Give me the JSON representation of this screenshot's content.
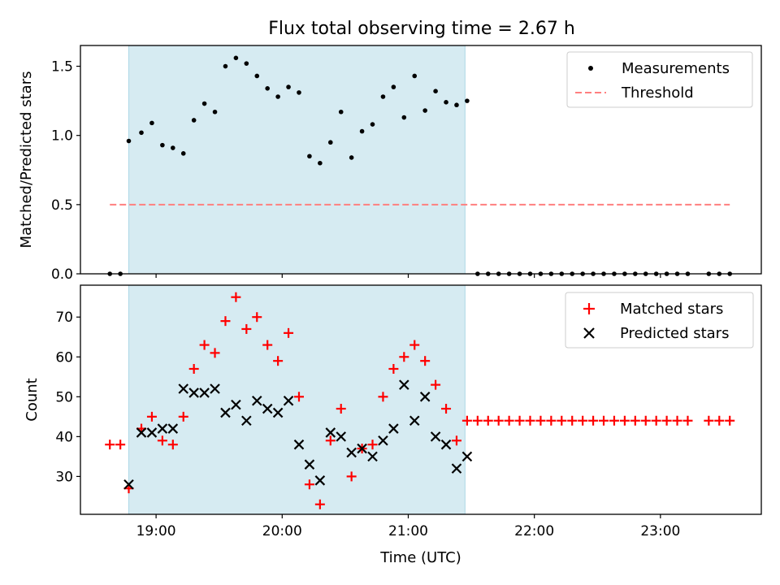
{
  "title": "Flux total observing time = 2.67 h",
  "colors": {
    "shade": "#add8e6",
    "measure": "#000000",
    "threshold": "#ff7f7f",
    "matched": "#ff0000",
    "predicted": "#000000"
  },
  "chart_data": [
    {
      "type": "scatter",
      "ylabel": "Matched/Predicted stars",
      "ylim": [
        0,
        1.65
      ],
      "yticks": [
        0.0,
        0.5,
        1.0,
        1.5
      ],
      "ytick_labels": [
        "0.0",
        "0.5",
        "1.0",
        "1.5"
      ],
      "shaded_span": [
        "18:47",
        "21:27"
      ],
      "threshold": 0.5,
      "threshold_range": [
        "18:38",
        "23:33"
      ],
      "legend": [
        "Measurements",
        "Threshold"
      ],
      "legend_position": "top-right",
      "measurements": {
        "x": [
          "18:38",
          "18:43",
          "18:47",
          "18:53",
          "18:58",
          "19:03",
          "19:08",
          "19:13",
          "19:18",
          "19:23",
          "19:28",
          "19:33",
          "19:38",
          "19:43",
          "19:48",
          "19:53",
          "19:58",
          "20:03",
          "20:08",
          "20:13",
          "20:18",
          "20:23",
          "20:28",
          "20:33",
          "20:38",
          "20:43",
          "20:48",
          "20:53",
          "20:58",
          "21:03",
          "21:08",
          "21:13",
          "21:18",
          "21:23",
          "21:28",
          "21:33",
          "21:38",
          "21:43",
          "21:48",
          "21:53",
          "21:58",
          "22:03",
          "22:08",
          "22:13",
          "22:18",
          "22:23",
          "22:28",
          "22:33",
          "22:38",
          "22:43",
          "22:48",
          "22:53",
          "22:58",
          "23:03",
          "23:08",
          "23:13",
          "23:23",
          "23:28",
          "23:33"
        ],
        "y": [
          0,
          0,
          0.96,
          1.02,
          1.09,
          0.93,
          0.91,
          0.87,
          1.11,
          1.23,
          1.17,
          1.5,
          1.56,
          1.52,
          1.43,
          1.34,
          1.28,
          1.35,
          1.31,
          0.85,
          0.8,
          0.95,
          1.17,
          0.84,
          1.03,
          1.08,
          1.28,
          1.35,
          1.13,
          1.43,
          1.18,
          1.32,
          1.24,
          1.22,
          1.25,
          0,
          0,
          0,
          0,
          0,
          0,
          0,
          0,
          0,
          0,
          0,
          0,
          0,
          0,
          0,
          0,
          0,
          0,
          0,
          0,
          0,
          0,
          0,
          0
        ]
      }
    },
    {
      "type": "scatter",
      "xlabel": "Time (UTC)",
      "ylabel": "Count",
      "ylim": [
        20.5,
        78
      ],
      "yticks": [
        30,
        40,
        50,
        60,
        70
      ],
      "ytick_labels": [
        "30",
        "40",
        "50",
        "60",
        "70"
      ],
      "xticks": [
        "19:00",
        "20:00",
        "21:00",
        "22:00",
        "23:00"
      ],
      "xlim": [
        "18:24",
        "23:48"
      ],
      "shaded_span": [
        "18:47",
        "21:27"
      ],
      "legend": [
        "Matched stars",
        "Predicted stars"
      ],
      "legend_position": "top-right",
      "matched": {
        "x": [
          "18:38",
          "18:43",
          "18:47",
          "18:53",
          "18:58",
          "19:03",
          "19:08",
          "19:13",
          "19:18",
          "19:23",
          "19:28",
          "19:33",
          "19:38",
          "19:43",
          "19:48",
          "19:53",
          "19:58",
          "20:03",
          "20:08",
          "20:13",
          "20:18",
          "20:23",
          "20:28",
          "20:33",
          "20:38",
          "20:43",
          "20:48",
          "20:53",
          "20:58",
          "21:03",
          "21:08",
          "21:13",
          "21:18",
          "21:23",
          "21:28",
          "21:33",
          "21:38",
          "21:43",
          "21:48",
          "21:53",
          "21:58",
          "22:03",
          "22:08",
          "22:13",
          "22:18",
          "22:23",
          "22:28",
          "22:33",
          "22:38",
          "22:43",
          "22:48",
          "22:53",
          "22:58",
          "23:03",
          "23:08",
          "23:13",
          "23:23",
          "23:28",
          "23:33"
        ],
        "y": [
          38,
          38,
          27,
          42,
          45,
          39,
          38,
          45,
          57,
          63,
          61,
          69,
          75,
          67,
          70,
          63,
          59,
          66,
          50,
          28,
          23,
          39,
          47,
          30,
          37,
          38,
          50,
          57,
          60,
          63,
          59,
          53,
          47,
          39,
          44,
          44,
          44,
          44,
          44,
          44,
          44,
          44,
          44,
          44,
          44,
          44,
          44,
          44,
          44,
          44,
          44,
          44,
          44,
          44,
          44,
          44,
          44,
          44,
          44
        ]
      },
      "predicted": {
        "x": [
          "18:47",
          "18:53",
          "18:58",
          "19:03",
          "19:08",
          "19:13",
          "19:18",
          "19:23",
          "19:28",
          "19:33",
          "19:38",
          "19:43",
          "19:48",
          "19:53",
          "19:58",
          "20:03",
          "20:08",
          "20:13",
          "20:18",
          "20:23",
          "20:28",
          "20:33",
          "20:38",
          "20:43",
          "20:48",
          "20:53",
          "20:58",
          "21:03",
          "21:08",
          "21:13",
          "21:18",
          "21:23",
          "21:28"
        ],
        "y": [
          28,
          41,
          41,
          42,
          42,
          52,
          51,
          51,
          52,
          46,
          48,
          44,
          49,
          47,
          46,
          49,
          38,
          33,
          29,
          41,
          40,
          36,
          37,
          35,
          39,
          42,
          53,
          44,
          50,
          40,
          38,
          32,
          35
        ]
      }
    }
  ]
}
